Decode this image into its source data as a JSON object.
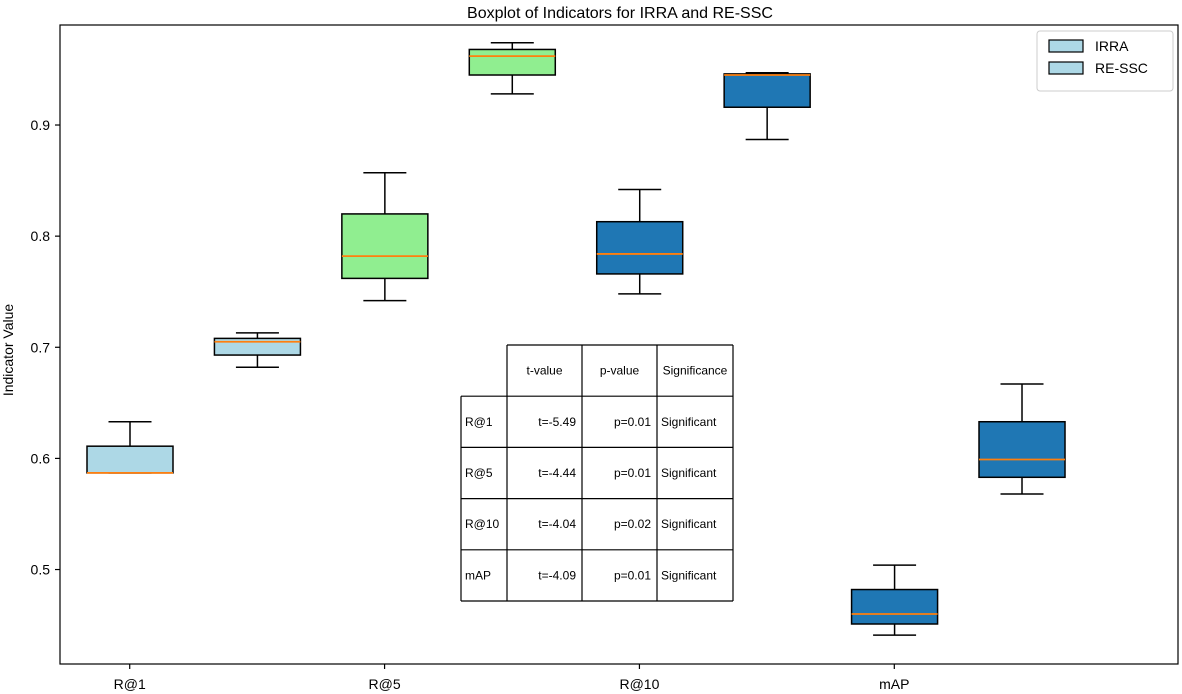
{
  "chart_data": {
    "type": "boxplot",
    "title": "Boxplot of Indicators for IRRA and RE-SSC",
    "xlabel": "",
    "ylabel": "Indicator Value",
    "ylim": [
      0.415,
      0.99
    ],
    "yticks": [
      0.5,
      0.6,
      0.7,
      0.8,
      0.9
    ],
    "ytick_labels": [
      "0.5",
      "0.6",
      "0.7",
      "0.8",
      "0.9"
    ],
    "categories": [
      "R@1",
      "R@5",
      "R@10",
      "mAP"
    ],
    "legend": {
      "placement": "top-right",
      "entries": [
        {
          "label": "IRRA",
          "color": "#add8e6"
        },
        {
          "label": "RE-SSC",
          "color": "#add8e6"
        }
      ]
    },
    "boxes": [
      {
        "category": "R@1",
        "position": 1,
        "whisker_low": 0.587,
        "q1": 0.587,
        "median": 0.587,
        "q3": 0.611,
        "whisker_high": 0.633,
        "fill": "#add8e6",
        "median_color": "#ff7f0e"
      },
      {
        "category": "R@1",
        "position": 2,
        "whisker_low": 0.682,
        "q1": 0.693,
        "median": 0.705,
        "q3": 0.708,
        "whisker_high": 0.713,
        "fill": "#add8e6",
        "median_color": "#ff7f0e"
      },
      {
        "category": "R@5",
        "position": 3,
        "whisker_low": 0.742,
        "q1": 0.762,
        "median": 0.782,
        "q3": 0.82,
        "whisker_high": 0.857,
        "fill": "#90ee90",
        "median_color": "#ff7f0e"
      },
      {
        "category": "R@5",
        "position": 4,
        "whisker_low": 0.928,
        "q1": 0.945,
        "median": 0.962,
        "q3": 0.968,
        "whisker_high": 0.974,
        "fill": "#90ee90",
        "median_color": "#ff7f0e"
      },
      {
        "category": "R@10",
        "position": 5,
        "whisker_low": 0.748,
        "q1": 0.766,
        "median": 0.784,
        "q3": 0.813,
        "whisker_high": 0.842,
        "fill": "#1f77b4",
        "median_color": "#ff7f0e"
      },
      {
        "category": "R@10",
        "position": 6,
        "whisker_low": 0.887,
        "q1": 0.916,
        "median": 0.945,
        "q3": 0.946,
        "whisker_high": 0.947,
        "fill": "#1f77b4",
        "median_color": "#ff7f0e"
      },
      {
        "category": "mAP",
        "position": 7,
        "whisker_low": 0.441,
        "q1": 0.451,
        "median": 0.46,
        "q3": 0.482,
        "whisker_high": 0.504,
        "fill": "#1f77b4",
        "median_color": "#ff7f0e"
      },
      {
        "category": "mAP",
        "position": 8,
        "whisker_low": 0.568,
        "q1": 0.583,
        "median": 0.599,
        "q3": 0.633,
        "whisker_high": 0.667,
        "fill": "#1f77b4",
        "median_color": "#ff7f0e"
      }
    ],
    "table": {
      "columns": [
        "",
        "t-value",
        "p-value",
        "Significance"
      ],
      "rows": [
        [
          "R@1",
          "t=-5.49",
          "p=0.01",
          "Significant"
        ],
        [
          "R@5",
          "t=-4.44",
          "p=0.01",
          "Significant"
        ],
        [
          "R@10",
          "t=-4.04",
          "p=0.02",
          "Significant"
        ],
        [
          "mAP",
          "t=-4.09",
          "p=0.01",
          "Significant"
        ]
      ]
    }
  }
}
